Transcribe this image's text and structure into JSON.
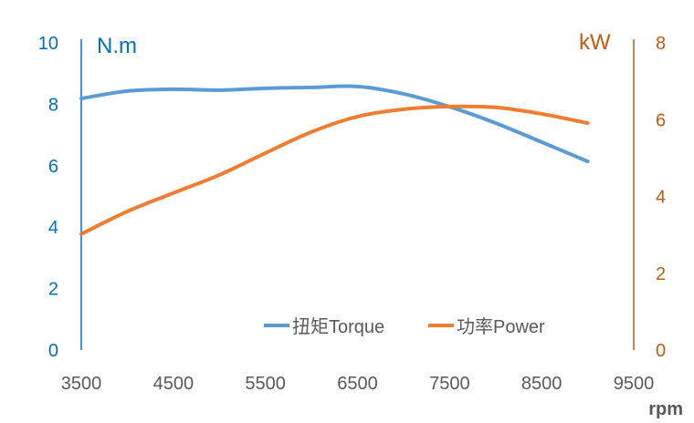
{
  "chart_data": {
    "type": "line",
    "title": "",
    "xlabel": "rpm",
    "ylabel_left": "N.m",
    "ylabel_right": "kW",
    "xlim": [
      3500,
      9500
    ],
    "ylim_left": [
      0,
      10
    ],
    "ylim_right": [
      0,
      8
    ],
    "x_ticks": [
      "3500",
      "4500",
      "5500",
      "6500",
      "7500",
      "8500",
      "9500"
    ],
    "y_left_ticks": [
      "0",
      "2",
      "4",
      "6",
      "8",
      "10"
    ],
    "y_right_ticks": [
      "0",
      "2",
      "4",
      "6",
      "8"
    ],
    "grid": false,
    "legend_position": "bottom-right-inside",
    "x": [
      3500,
      4000,
      4500,
      5000,
      5500,
      6000,
      6500,
      7000,
      7500,
      8000,
      8500,
      9000
    ],
    "series": [
      {
        "name": "扭矩Torque",
        "axis": "left",
        "color": "#5b9bd5",
        "values": [
          8.19,
          8.43,
          8.49,
          8.46,
          8.52,
          8.55,
          8.58,
          8.34,
          7.92,
          7.39,
          6.77,
          6.14
        ]
      },
      {
        "name": "功率Power",
        "axis": "right",
        "color": "#ed7d31",
        "values": [
          3.02,
          3.61,
          4.09,
          4.56,
          5.13,
          5.68,
          6.08,
          6.27,
          6.34,
          6.32,
          6.15,
          5.91
        ]
      }
    ],
    "colors": {
      "left_axis": "#0070c0",
      "right_axis": "#c55a11",
      "x_axis_text": "#595959"
    }
  }
}
